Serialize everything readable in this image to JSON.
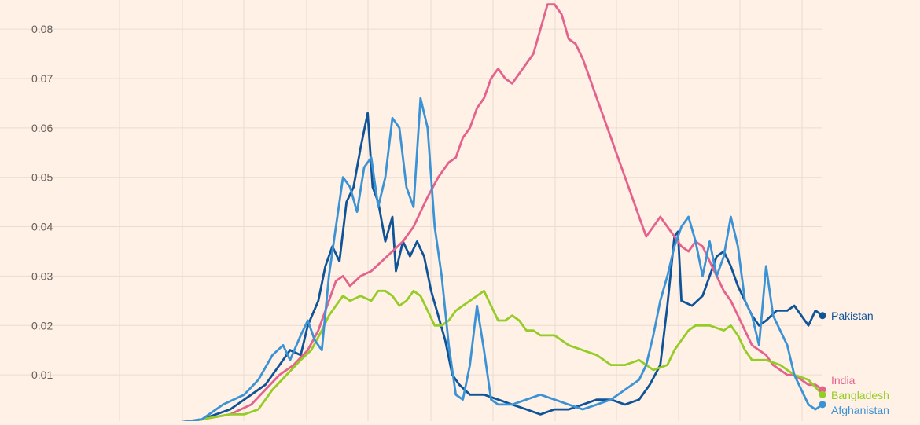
{
  "colors": {
    "background": "#fff1e5",
    "grid": "#e9dcd0",
    "tick_text": "#66605c"
  },
  "chart_data": {
    "type": "line",
    "title": "",
    "xlabel": "",
    "ylabel": "",
    "ylim": [
      0,
      0.085
    ],
    "xlim": [
      0,
      1
    ],
    "y_ticks": [
      {
        "value": 0.08,
        "label": "0.08"
      },
      {
        "value": 0.07,
        "label": "0.07"
      },
      {
        "value": 0.06,
        "label": "0.06"
      },
      {
        "value": 0.05,
        "label": "0.05"
      },
      {
        "value": 0.04,
        "label": "0.04"
      },
      {
        "value": 0.03,
        "label": "0.03"
      },
      {
        "value": 0.02,
        "label": "0.02"
      },
      {
        "value": 0.01,
        "label": "0.01"
      }
    ],
    "x_gridlines": [
      0.0,
      0.088,
      0.177,
      0.265,
      0.354,
      0.442,
      0.531,
      0.619,
      0.708,
      0.796,
      0.885,
      0.973
    ],
    "grid": true,
    "legend_position": "end-of-line labels",
    "series": [
      {
        "name": "Pakistan",
        "color": "#0f5499",
        "points": [
          [
            0.07,
            0.0
          ],
          [
            0.12,
            0.001
          ],
          [
            0.16,
            0.003
          ],
          [
            0.19,
            0.006
          ],
          [
            0.21,
            0.008
          ],
          [
            0.23,
            0.012
          ],
          [
            0.245,
            0.015
          ],
          [
            0.26,
            0.014
          ],
          [
            0.27,
            0.02
          ],
          [
            0.285,
            0.025
          ],
          [
            0.295,
            0.032
          ],
          [
            0.305,
            0.036
          ],
          [
            0.315,
            0.033
          ],
          [
            0.325,
            0.045
          ],
          [
            0.335,
            0.048
          ],
          [
            0.345,
            0.056
          ],
          [
            0.355,
            0.063
          ],
          [
            0.362,
            0.048
          ],
          [
            0.37,
            0.045
          ],
          [
            0.38,
            0.037
          ],
          [
            0.39,
            0.042
          ],
          [
            0.395,
            0.031
          ],
          [
            0.405,
            0.037
          ],
          [
            0.415,
            0.034
          ],
          [
            0.425,
            0.037
          ],
          [
            0.435,
            0.034
          ],
          [
            0.445,
            0.027
          ],
          [
            0.455,
            0.022
          ],
          [
            0.465,
            0.017
          ],
          [
            0.475,
            0.01
          ],
          [
            0.485,
            0.008
          ],
          [
            0.5,
            0.006
          ],
          [
            0.52,
            0.006
          ],
          [
            0.54,
            0.005
          ],
          [
            0.56,
            0.004
          ],
          [
            0.58,
            0.003
          ],
          [
            0.6,
            0.002
          ],
          [
            0.62,
            0.003
          ],
          [
            0.64,
            0.003
          ],
          [
            0.66,
            0.004
          ],
          [
            0.68,
            0.005
          ],
          [
            0.7,
            0.005
          ],
          [
            0.72,
            0.004
          ],
          [
            0.74,
            0.005
          ],
          [
            0.755,
            0.008
          ],
          [
            0.77,
            0.012
          ],
          [
            0.78,
            0.024
          ],
          [
            0.79,
            0.038
          ],
          [
            0.795,
            0.039
          ],
          [
            0.8,
            0.025
          ],
          [
            0.815,
            0.024
          ],
          [
            0.83,
            0.026
          ],
          [
            0.84,
            0.03
          ],
          [
            0.85,
            0.034
          ],
          [
            0.86,
            0.035
          ],
          [
            0.87,
            0.032
          ],
          [
            0.88,
            0.028
          ],
          [
            0.89,
            0.025
          ],
          [
            0.9,
            0.022
          ],
          [
            0.91,
            0.02
          ],
          [
            0.92,
            0.021
          ],
          [
            0.935,
            0.023
          ],
          [
            0.95,
            0.023
          ],
          [
            0.96,
            0.024
          ],
          [
            0.97,
            0.022
          ],
          [
            0.98,
            0.02
          ],
          [
            0.99,
            0.023
          ],
          [
            1.0,
            0.022
          ]
        ]
      },
      {
        "name": "India",
        "color": "#e3628e",
        "points": [
          [
            0.07,
            0.0
          ],
          [
            0.12,
            0.001
          ],
          [
            0.16,
            0.002
          ],
          [
            0.19,
            0.004
          ],
          [
            0.21,
            0.007
          ],
          [
            0.23,
            0.01
          ],
          [
            0.25,
            0.012
          ],
          [
            0.27,
            0.015
          ],
          [
            0.285,
            0.019
          ],
          [
            0.3,
            0.025
          ],
          [
            0.31,
            0.029
          ],
          [
            0.32,
            0.03
          ],
          [
            0.33,
            0.028
          ],
          [
            0.345,
            0.03
          ],
          [
            0.36,
            0.031
          ],
          [
            0.375,
            0.033
          ],
          [
            0.39,
            0.035
          ],
          [
            0.405,
            0.037
          ],
          [
            0.42,
            0.04
          ],
          [
            0.43,
            0.043
          ],
          [
            0.44,
            0.046
          ],
          [
            0.455,
            0.05
          ],
          [
            0.47,
            0.053
          ],
          [
            0.48,
            0.054
          ],
          [
            0.49,
            0.058
          ],
          [
            0.5,
            0.06
          ],
          [
            0.51,
            0.064
          ],
          [
            0.52,
            0.066
          ],
          [
            0.53,
            0.07
          ],
          [
            0.54,
            0.072
          ],
          [
            0.55,
            0.07
          ],
          [
            0.56,
            0.069
          ],
          [
            0.57,
            0.071
          ],
          [
            0.58,
            0.073
          ],
          [
            0.59,
            0.075
          ],
          [
            0.6,
            0.08
          ],
          [
            0.61,
            0.085
          ],
          [
            0.62,
            0.085
          ],
          [
            0.63,
            0.083
          ],
          [
            0.64,
            0.078
          ],
          [
            0.65,
            0.077
          ],
          [
            0.66,
            0.074
          ],
          [
            0.67,
            0.07
          ],
          [
            0.68,
            0.066
          ],
          [
            0.69,
            0.062
          ],
          [
            0.7,
            0.058
          ],
          [
            0.71,
            0.054
          ],
          [
            0.72,
            0.05
          ],
          [
            0.73,
            0.046
          ],
          [
            0.74,
            0.042
          ],
          [
            0.75,
            0.038
          ],
          [
            0.76,
            0.04
          ],
          [
            0.77,
            0.042
          ],
          [
            0.78,
            0.04
          ],
          [
            0.79,
            0.038
          ],
          [
            0.8,
            0.036
          ],
          [
            0.81,
            0.035
          ],
          [
            0.82,
            0.037
          ],
          [
            0.83,
            0.036
          ],
          [
            0.84,
            0.033
          ],
          [
            0.85,
            0.03
          ],
          [
            0.86,
            0.027
          ],
          [
            0.87,
            0.025
          ],
          [
            0.88,
            0.022
          ],
          [
            0.89,
            0.019
          ],
          [
            0.9,
            0.016
          ],
          [
            0.91,
            0.015
          ],
          [
            0.92,
            0.014
          ],
          [
            0.93,
            0.012
          ],
          [
            0.94,
            0.011
          ],
          [
            0.95,
            0.01
          ],
          [
            0.96,
            0.01
          ],
          [
            0.97,
            0.009
          ],
          [
            0.98,
            0.008
          ],
          [
            0.99,
            0.008
          ],
          [
            1.0,
            0.007
          ]
        ]
      },
      {
        "name": "Bangladesh",
        "color": "#96cc28",
        "points": [
          [
            0.07,
            0.0
          ],
          [
            0.12,
            0.001
          ],
          [
            0.16,
            0.002
          ],
          [
            0.18,
            0.002
          ],
          [
            0.2,
            0.003
          ],
          [
            0.22,
            0.007
          ],
          [
            0.24,
            0.01
          ],
          [
            0.26,
            0.013
          ],
          [
            0.275,
            0.015
          ],
          [
            0.29,
            0.019
          ],
          [
            0.3,
            0.022
          ],
          [
            0.31,
            0.024
          ],
          [
            0.32,
            0.026
          ],
          [
            0.33,
            0.025
          ],
          [
            0.345,
            0.026
          ],
          [
            0.36,
            0.025
          ],
          [
            0.37,
            0.027
          ],
          [
            0.38,
            0.027
          ],
          [
            0.39,
            0.026
          ],
          [
            0.4,
            0.024
          ],
          [
            0.41,
            0.025
          ],
          [
            0.42,
            0.027
          ],
          [
            0.43,
            0.026
          ],
          [
            0.44,
            0.023
          ],
          [
            0.45,
            0.02
          ],
          [
            0.46,
            0.02
          ],
          [
            0.47,
            0.021
          ],
          [
            0.48,
            0.023
          ],
          [
            0.49,
            0.024
          ],
          [
            0.5,
            0.025
          ],
          [
            0.51,
            0.026
          ],
          [
            0.52,
            0.027
          ],
          [
            0.53,
            0.024
          ],
          [
            0.54,
            0.021
          ],
          [
            0.55,
            0.021
          ],
          [
            0.56,
            0.022
          ],
          [
            0.57,
            0.021
          ],
          [
            0.58,
            0.019
          ],
          [
            0.59,
            0.019
          ],
          [
            0.6,
            0.018
          ],
          [
            0.62,
            0.018
          ],
          [
            0.64,
            0.016
          ],
          [
            0.66,
            0.015
          ],
          [
            0.68,
            0.014
          ],
          [
            0.7,
            0.012
          ],
          [
            0.72,
            0.012
          ],
          [
            0.74,
            0.013
          ],
          [
            0.76,
            0.011
          ],
          [
            0.78,
            0.012
          ],
          [
            0.79,
            0.015
          ],
          [
            0.8,
            0.017
          ],
          [
            0.81,
            0.019
          ],
          [
            0.82,
            0.02
          ],
          [
            0.84,
            0.02
          ],
          [
            0.86,
            0.019
          ],
          [
            0.87,
            0.02
          ],
          [
            0.88,
            0.018
          ],
          [
            0.89,
            0.015
          ],
          [
            0.9,
            0.013
          ],
          [
            0.92,
            0.013
          ],
          [
            0.94,
            0.012
          ],
          [
            0.96,
            0.01
          ],
          [
            0.98,
            0.009
          ],
          [
            1.0,
            0.006
          ]
        ]
      },
      {
        "name": "Afghanistan",
        "color": "#3b93d5",
        "points": [
          [
            0.07,
            0.0
          ],
          [
            0.12,
            0.001
          ],
          [
            0.15,
            0.004
          ],
          [
            0.18,
            0.006
          ],
          [
            0.2,
            0.009
          ],
          [
            0.22,
            0.014
          ],
          [
            0.235,
            0.016
          ],
          [
            0.245,
            0.013
          ],
          [
            0.26,
            0.018
          ],
          [
            0.27,
            0.021
          ],
          [
            0.28,
            0.017
          ],
          [
            0.29,
            0.015
          ],
          [
            0.3,
            0.03
          ],
          [
            0.31,
            0.04
          ],
          [
            0.32,
            0.05
          ],
          [
            0.33,
            0.048
          ],
          [
            0.34,
            0.043
          ],
          [
            0.35,
            0.052
          ],
          [
            0.36,
            0.054
          ],
          [
            0.37,
            0.044
          ],
          [
            0.38,
            0.05
          ],
          [
            0.39,
            0.062
          ],
          [
            0.4,
            0.06
          ],
          [
            0.41,
            0.048
          ],
          [
            0.42,
            0.044
          ],
          [
            0.43,
            0.066
          ],
          [
            0.44,
            0.06
          ],
          [
            0.45,
            0.04
          ],
          [
            0.46,
            0.03
          ],
          [
            0.47,
            0.016
          ],
          [
            0.48,
            0.006
          ],
          [
            0.49,
            0.005
          ],
          [
            0.5,
            0.012
          ],
          [
            0.51,
            0.024
          ],
          [
            0.52,
            0.015
          ],
          [
            0.53,
            0.005
          ],
          [
            0.54,
            0.004
          ],
          [
            0.56,
            0.004
          ],
          [
            0.58,
            0.005
          ],
          [
            0.6,
            0.006
          ],
          [
            0.62,
            0.005
          ],
          [
            0.64,
            0.004
          ],
          [
            0.66,
            0.003
          ],
          [
            0.68,
            0.004
          ],
          [
            0.7,
            0.005
          ],
          [
            0.72,
            0.007
          ],
          [
            0.74,
            0.009
          ],
          [
            0.75,
            0.012
          ],
          [
            0.76,
            0.018
          ],
          [
            0.77,
            0.025
          ],
          [
            0.78,
            0.03
          ],
          [
            0.79,
            0.036
          ],
          [
            0.8,
            0.04
          ],
          [
            0.81,
            0.042
          ],
          [
            0.82,
            0.037
          ],
          [
            0.83,
            0.03
          ],
          [
            0.84,
            0.037
          ],
          [
            0.85,
            0.03
          ],
          [
            0.86,
            0.034
          ],
          [
            0.87,
            0.042
          ],
          [
            0.88,
            0.036
          ],
          [
            0.89,
            0.025
          ],
          [
            0.9,
            0.022
          ],
          [
            0.91,
            0.016
          ],
          [
            0.92,
            0.032
          ],
          [
            0.93,
            0.022
          ],
          [
            0.94,
            0.019
          ],
          [
            0.95,
            0.016
          ],
          [
            0.96,
            0.01
          ],
          [
            0.97,
            0.007
          ],
          [
            0.98,
            0.004
          ],
          [
            0.99,
            0.003
          ],
          [
            1.0,
            0.004
          ]
        ]
      }
    ]
  }
}
